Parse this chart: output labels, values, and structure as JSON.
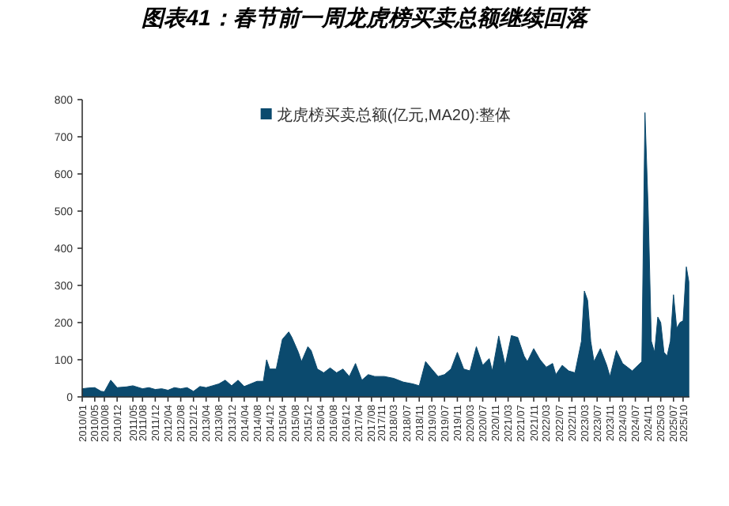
{
  "chart_data": {
    "type": "area",
    "title": "图表41：春节前一周龙虎榜买卖总额继续回落",
    "x": [
      "2010-01",
      "2010-03",
      "2010-05",
      "2010-07",
      "2010-08",
      "2010-10",
      "2010-12",
      "2011-03",
      "2011-05",
      "2011-08",
      "2011-10",
      "2011-12",
      "2012-02",
      "2012-04",
      "2012-06",
      "2012-08",
      "2012-10",
      "2012-12",
      "2013-02",
      "2013-04",
      "2013-06",
      "2013-08",
      "2013-10",
      "2013-12",
      "2014-02",
      "2014-04",
      "2014-06",
      "2014-08",
      "2014-10",
      "2014-11",
      "2014-12",
      "2015-02",
      "2015-04",
      "2015-06",
      "2015-07",
      "2015-09",
      "2015-10",
      "2015-12",
      "2016-01",
      "2016-03",
      "2016-05",
      "2016-07",
      "2016-09",
      "2016-11",
      "2017-01",
      "2017-03",
      "2017-05",
      "2017-07",
      "2017-09",
      "2017-12",
      "2018-03",
      "2018-06",
      "2018-09",
      "2018-11",
      "2019-01",
      "2019-03",
      "2019-05",
      "2019-07",
      "2019-09",
      "2019-11",
      "2020-01",
      "2020-03",
      "2020-05",
      "2020-07",
      "2020-09",
      "2020-10",
      "2020-12",
      "2021-02",
      "2021-04",
      "2021-06",
      "2021-08",
      "2021-09",
      "2021-11",
      "2022-01",
      "2022-03",
      "2022-05",
      "2022-06",
      "2022-08",
      "2022-10",
      "2022-12",
      "2023-02",
      "2023-03",
      "2023-04",
      "2023-05",
      "2023-06",
      "2023-08",
      "2023-10",
      "2023-11",
      "2024-01",
      "2024-03",
      "2024-06",
      "2024-09",
      "2024-10",
      "2024-11",
      "2024-12",
      "2025-01",
      "2025-02",
      "2025-03",
      "2025-04",
      "2025-05",
      "2025-06",
      "2025-07",
      "2025-08",
      "2025-09",
      "2025-10",
      "2025-11",
      "2025-11-25"
    ],
    "series": [
      {
        "name": "龙虎榜买卖总额(亿元,MA20):整体",
        "color": "#0b4a6e",
        "values": [
          22,
          24,
          25,
          15,
          14,
          45,
          25,
          27,
          30,
          22,
          25,
          20,
          22,
          18,
          25,
          22,
          25,
          15,
          28,
          25,
          30,
          35,
          45,
          30,
          45,
          28,
          35,
          42,
          42,
          100,
          75,
          75,
          155,
          175,
          160,
          120,
          95,
          135,
          125,
          75,
          65,
          78,
          65,
          75,
          55,
          90,
          45,
          60,
          55,
          55,
          50,
          40,
          35,
          30,
          95,
          75,
          55,
          60,
          75,
          120,
          75,
          70,
          135,
          85,
          103,
          70,
          164,
          85,
          165,
          160,
          110,
          95,
          130,
          100,
          80,
          90,
          60,
          85,
          70,
          65,
          150,
          285,
          260,
          150,
          95,
          130,
          85,
          55,
          125,
          90,
          70,
          95,
          765,
          500,
          150,
          120,
          215,
          200,
          120,
          110,
          150,
          275,
          185,
          200,
          205,
          350,
          310
        ]
      }
    ],
    "xlim": [
      "2010-01",
      "2025-12"
    ],
    "xticks": [
      {
        "value": "2010-01",
        "label": "2010/01"
      },
      {
        "value": "2010-05",
        "label": "2010/05"
      },
      {
        "value": "2010-08",
        "label": "2010/08"
      },
      {
        "value": "2010-12",
        "label": "2010/12"
      },
      {
        "value": "2011-05",
        "label": "2011/05"
      },
      {
        "value": "2011-08",
        "label": "2011/08"
      },
      {
        "value": "2011-12",
        "label": "2011/12"
      },
      {
        "value": "2012-04",
        "label": "2012/04"
      },
      {
        "value": "2012-08",
        "label": "2012/08"
      },
      {
        "value": "2012-12",
        "label": "2012/12"
      },
      {
        "value": "2013-04",
        "label": "2013/04"
      },
      {
        "value": "2013-08",
        "label": "2013/08"
      },
      {
        "value": "2013-12",
        "label": "2013/12"
      },
      {
        "value": "2014-04",
        "label": "2014/04"
      },
      {
        "value": "2014-08",
        "label": "2014/08"
      },
      {
        "value": "2014-12",
        "label": "2014/12"
      },
      {
        "value": "2015-04",
        "label": "2015/04"
      },
      {
        "value": "2015-08",
        "label": "2015/08"
      },
      {
        "value": "2015-12",
        "label": "2015/12"
      },
      {
        "value": "2016-04",
        "label": "2016/04"
      },
      {
        "value": "2016-08",
        "label": "2016/08"
      },
      {
        "value": "2016-12",
        "label": "2016/12"
      },
      {
        "value": "2017-04",
        "label": "2017/04"
      },
      {
        "value": "2017-08",
        "label": "2017/08"
      },
      {
        "value": "2017-11",
        "label": "2017/11"
      },
      {
        "value": "2018-03",
        "label": "2018/03"
      },
      {
        "value": "2018-07",
        "label": "2018/07"
      },
      {
        "value": "2018-11",
        "label": "2018/11"
      },
      {
        "value": "2019-03",
        "label": "2019/03"
      },
      {
        "value": "2019-07",
        "label": "2019/07"
      },
      {
        "value": "2019-11",
        "label": "2019/11"
      },
      {
        "value": "2020-03",
        "label": "2020/03"
      },
      {
        "value": "2020-07",
        "label": "2020/07"
      },
      {
        "value": "2020-11",
        "label": "2020/11"
      },
      {
        "value": "2021-03",
        "label": "2021/03"
      },
      {
        "value": "2021-07",
        "label": "2021/07"
      },
      {
        "value": "2021-11",
        "label": "2021/11"
      },
      {
        "value": "2022-03",
        "label": "2022/03"
      },
      {
        "value": "2022-07",
        "label": "2022/07"
      },
      {
        "value": "2022-11",
        "label": "2022/11"
      },
      {
        "value": "2023-03",
        "label": "2023/03"
      },
      {
        "value": "2023-07",
        "label": "2023/07"
      },
      {
        "value": "2023-11",
        "label": "2023/11"
      },
      {
        "value": "2024-03",
        "label": "2024/03"
      },
      {
        "value": "2024-07",
        "label": "2024/07"
      },
      {
        "value": "2024-11",
        "label": "2024/11"
      },
      {
        "value": "2025-03",
        "label": "2025/03"
      },
      {
        "value": "2025-07",
        "label": "2025/07"
      },
      {
        "value": "2025-10",
        "label": "2025/10"
      }
    ],
    "ylim": [
      0,
      800
    ],
    "yticks": [
      0,
      100,
      200,
      300,
      400,
      500,
      600,
      700,
      800
    ],
    "legend": "top"
  }
}
